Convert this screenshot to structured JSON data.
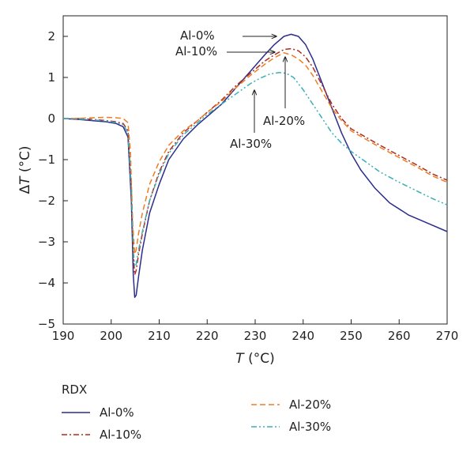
{
  "chart_data": {
    "type": "line",
    "xlabel": "T (°C)",
    "xlabel_var": "T",
    "xlabel_unit": " (°C)",
    "ylabel": "ΔT (°C)",
    "ylabel_delta": "Δ",
    "ylabel_var": "T",
    "ylabel_unit": " (°C)",
    "xlim": [
      190,
      270
    ],
    "ylim": [
      -5,
      2.5
    ],
    "xticks": [
      190,
      200,
      210,
      220,
      230,
      240,
      250,
      260,
      270
    ],
    "yticks": [
      -5,
      -4,
      -3,
      -2,
      -1,
      0,
      1,
      2
    ],
    "grid": false,
    "legend_title": "RDX",
    "legend_position": "bottom",
    "series": [
      {
        "name": "Al-0%",
        "color": "#2b2d8c",
        "dash": "solid",
        "x": [
          190,
          193,
          196,
          199,
          201,
          202.5,
          203.5,
          204.2,
          204.6,
          204.9,
          205.2,
          205.7,
          206.5,
          208,
          210,
          212,
          215,
          218,
          220,
          223,
          226,
          229,
          232,
          234,
          236,
          237.5,
          239,
          240.5,
          242,
          244,
          246,
          248,
          250,
          252,
          255,
          258,
          262,
          266,
          270
        ],
        "y": [
          0.0,
          -0.02,
          -0.05,
          -0.08,
          -0.12,
          -0.2,
          -0.45,
          -2.0,
          -3.8,
          -4.35,
          -4.3,
          -3.85,
          -3.2,
          -2.3,
          -1.6,
          -1.0,
          -0.5,
          -0.15,
          0.05,
          0.35,
          0.75,
          1.15,
          1.55,
          1.8,
          2.0,
          2.05,
          2.0,
          1.8,
          1.45,
          0.85,
          0.25,
          -0.35,
          -0.85,
          -1.25,
          -1.7,
          -2.05,
          -2.35,
          -2.55,
          -2.75
        ]
      },
      {
        "name": "Al-10%",
        "color": "#b02a1e",
        "dash": "dashdot",
        "x": [
          190,
          193,
          196,
          199,
          201,
          202.5,
          203.5,
          204.2,
          204.6,
          204.9,
          205.2,
          205.7,
          206.5,
          208,
          210,
          212,
          215,
          218,
          220,
          223,
          226,
          229,
          232,
          234,
          236,
          237.5,
          239,
          240.5,
          242,
          244,
          246,
          248,
          250,
          253,
          256,
          260,
          264,
          267,
          270
        ],
        "y": [
          0.0,
          0.0,
          -0.02,
          -0.05,
          -0.08,
          -0.12,
          -0.3,
          -1.7,
          -3.3,
          -3.8,
          -3.7,
          -3.3,
          -2.8,
          -2.0,
          -1.3,
          -0.8,
          -0.35,
          -0.05,
          0.15,
          0.45,
          0.8,
          1.1,
          1.4,
          1.55,
          1.68,
          1.7,
          1.65,
          1.5,
          1.25,
          0.8,
          0.35,
          0.0,
          -0.25,
          -0.45,
          -0.65,
          -0.9,
          -1.15,
          -1.35,
          -1.5
        ]
      },
      {
        "name": "Al-20%",
        "color": "#ee7d22",
        "dash": "dashed",
        "x": [
          190,
          193,
          196,
          199,
          201,
          202.5,
          203.5,
          204,
          204.5,
          204.9,
          205.2,
          205.7,
          206.5,
          208,
          210,
          212,
          215,
          218,
          220,
          223,
          226,
          229,
          232,
          234,
          236,
          237.5,
          239,
          240.5,
          242,
          244,
          246,
          248,
          250,
          253,
          256,
          260,
          264,
          267,
          270
        ],
        "y": [
          0.0,
          0.0,
          0.02,
          0.03,
          0.02,
          0.0,
          -0.1,
          -0.8,
          -2.6,
          -3.3,
          -3.2,
          -2.8,
          -2.3,
          -1.6,
          -1.05,
          -0.65,
          -0.3,
          -0.05,
          0.15,
          0.42,
          0.75,
          1.05,
          1.32,
          1.48,
          1.6,
          1.55,
          1.45,
          1.3,
          1.05,
          0.65,
          0.25,
          -0.05,
          -0.3,
          -0.5,
          -0.7,
          -0.95,
          -1.2,
          -1.4,
          -1.55
        ]
      },
      {
        "name": "Al-30%",
        "color": "#3aafb9",
        "dash": "dashdotdot",
        "x": [
          190,
          193,
          196,
          199,
          201,
          202.5,
          203.5,
          204.2,
          204.6,
          204.9,
          205.2,
          205.7,
          206.5,
          208,
          210,
          212,
          215,
          218,
          220,
          223,
          226,
          229,
          231,
          233,
          235,
          236.5,
          238,
          240,
          242,
          244,
          246,
          248,
          250,
          253,
          256,
          260,
          264,
          267,
          270
        ],
        "y": [
          0.0,
          -0.01,
          -0.03,
          -0.06,
          -0.1,
          -0.15,
          -0.35,
          -1.7,
          -3.2,
          -3.6,
          -3.55,
          -3.2,
          -2.75,
          -2.0,
          -1.35,
          -0.85,
          -0.4,
          -0.1,
          0.1,
          0.35,
          0.6,
          0.85,
          0.98,
          1.08,
          1.12,
          1.1,
          1.0,
          0.7,
          0.35,
          0.0,
          -0.35,
          -0.6,
          -0.8,
          -1.05,
          -1.3,
          -1.55,
          -1.78,
          -1.95,
          -2.1
        ]
      }
    ],
    "annotations": [
      {
        "text": "Al-0%",
        "target": [
          237.5,
          2.05
        ]
      },
      {
        "text": "Al-10%",
        "target": [
          235.8,
          1.68
        ]
      },
      {
        "text": "Al-20%",
        "target": [
          236.2,
          1.55
        ]
      },
      {
        "text": "Al-30%",
        "target": [
          230,
          0.75
        ]
      }
    ]
  }
}
